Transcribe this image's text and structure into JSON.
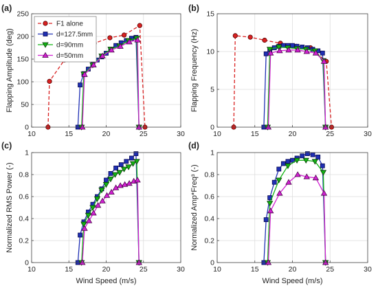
{
  "colors": {
    "f1": "#d92121",
    "d127": "#1f2fb4",
    "d90": "#12b412",
    "d50": "#d21fd2",
    "grid": "#dddddd",
    "axis": "#444444"
  },
  "legend": {
    "entries": [
      "F1 alone",
      "d=127.5mm",
      "d=90mm",
      "d=50mm"
    ]
  },
  "chart_data": [
    {
      "panel": "(a)",
      "type": "line",
      "ylabel": "Flapping Amplitude (deg)",
      "xlabel": "",
      "xlim": [
        10,
        30
      ],
      "ylim": [
        0,
        250
      ],
      "xticks": [
        10,
        15,
        20,
        25,
        30
      ],
      "yticks": [
        0,
        50,
        100,
        150,
        200,
        250
      ],
      "grid": true,
      "legend_location": "top-left",
      "series": [
        {
          "name": "F1 alone",
          "x": [
            12.2,
            12.4,
            14.4,
            16.3,
            18.4,
            20.5,
            22.4,
            24.5,
            25.2
          ],
          "y": [
            0,
            101,
            148,
            168,
            185,
            197,
            203,
            224,
            0
          ]
        },
        {
          "name": "d=127.5mm",
          "x": [
            16.2,
            16.5,
            17.0,
            17.6,
            18.2,
            18.8,
            19.4,
            20.0,
            20.6,
            21.3,
            22.0,
            22.7,
            23.4,
            24.0,
            24.4
          ],
          "y": [
            0,
            93,
            118,
            128,
            138,
            148,
            155,
            163,
            172,
            180,
            186,
            191,
            196,
            198,
            0
          ]
        },
        {
          "name": "d=90mm",
          "x": [
            16.7,
            17.0,
            18.2,
            19.4,
            20.6,
            21.8,
            23.0,
            24.1,
            24.4
          ],
          "y": [
            0,
            117,
            137,
            157,
            172,
            179,
            191,
            196,
            0
          ]
        },
        {
          "name": "d=50mm",
          "x": [
            16.8,
            17.1,
            18.3,
            19.5,
            20.7,
            21.9,
            23.1,
            24.2,
            24.4
          ],
          "y": [
            0,
            116,
            137,
            157,
            170,
            178,
            188,
            192,
            0
          ]
        }
      ]
    },
    {
      "panel": "(b)",
      "type": "line",
      "ylabel": "Flapping Frequency (Hz)",
      "xlabel": "",
      "xlim": [
        10,
        30
      ],
      "ylim": [
        0,
        15
      ],
      "xticks": [
        10,
        15,
        20,
        25,
        30
      ],
      "yticks": [
        0,
        5,
        10,
        15
      ],
      "grid": true,
      "series": [
        {
          "name": "F1 alone",
          "x": [
            12.2,
            12.4,
            14.4,
            16.3,
            18.4,
            20.5,
            22.4,
            24.5,
            25.2
          ],
          "y": [
            0,
            12.1,
            11.9,
            11.5,
            11.1,
            10.7,
            10.5,
            8.7,
            0
          ]
        },
        {
          "name": "d=127.5mm",
          "x": [
            16.2,
            16.5,
            17.0,
            17.6,
            18.2,
            18.8,
            19.4,
            20.0,
            20.6,
            21.3,
            22.0,
            22.7,
            23.4,
            24.0,
            24.4
          ],
          "y": [
            0,
            9.7,
            10.2,
            10.5,
            10.7,
            10.8,
            10.8,
            10.8,
            10.7,
            10.6,
            10.5,
            10.3,
            10.1,
            9.8,
            0
          ]
        },
        {
          "name": "d=90mm",
          "x": [
            16.7,
            17.0,
            18.2,
            19.4,
            20.6,
            21.8,
            23.0,
            24.1,
            24.4
          ],
          "y": [
            0,
            10.3,
            10.6,
            10.5,
            10.4,
            10.3,
            10.1,
            8.8,
            0
          ]
        },
        {
          "name": "d=50mm",
          "x": [
            16.8,
            17.1,
            18.3,
            19.5,
            20.7,
            21.9,
            23.1,
            24.2,
            24.4
          ],
          "y": [
            0,
            9.8,
            10.1,
            10.2,
            10.2,
            10.0,
            9.8,
            8.7,
            0
          ]
        }
      ]
    },
    {
      "panel": "(c)",
      "type": "line",
      "ylabel": "Normalized RMS Power (-)",
      "xlabel": "Wind Speed (m/s)",
      "xlim": [
        10,
        30
      ],
      "ylim": [
        0,
        1
      ],
      "xticks": [
        10,
        15,
        20,
        25,
        30
      ],
      "yticks": [
        0,
        0.2,
        0.4,
        0.6,
        0.8,
        1
      ],
      "grid": true,
      "series": [
        {
          "name": "d=127.5mm",
          "x": [
            16.2,
            16.5,
            17.0,
            17.6,
            18.2,
            18.8,
            19.4,
            20.0,
            20.6,
            21.3,
            22.0,
            22.7,
            23.4,
            24.0,
            24.4
          ],
          "y": [
            0,
            0.25,
            0.37,
            0.46,
            0.53,
            0.6,
            0.67,
            0.75,
            0.81,
            0.86,
            0.89,
            0.92,
            0.95,
            0.99,
            0
          ]
        },
        {
          "name": "d=90mm",
          "x": [
            16.7,
            17.0,
            17.6,
            18.2,
            18.8,
            19.4,
            20.0,
            20.6,
            21.2,
            21.8,
            22.4,
            23.0,
            23.6,
            24.1,
            24.4
          ],
          "y": [
            0,
            0.35,
            0.43,
            0.5,
            0.58,
            0.66,
            0.71,
            0.76,
            0.8,
            0.82,
            0.85,
            0.87,
            0.9,
            0.92,
            0
          ]
        },
        {
          "name": "d=50mm",
          "x": [
            16.8,
            17.1,
            17.7,
            18.3,
            18.9,
            19.5,
            20.1,
            20.7,
            21.3,
            21.9,
            22.5,
            23.1,
            23.7,
            24.2,
            24.4
          ],
          "y": [
            0,
            0.31,
            0.38,
            0.45,
            0.52,
            0.56,
            0.61,
            0.64,
            0.68,
            0.7,
            0.71,
            0.72,
            0.74,
            0.75,
            0
          ]
        }
      ]
    },
    {
      "panel": "(d)",
      "type": "line",
      "ylabel": "Normalized Amp*Freq³ (-)",
      "xlabel": "Wind Speed (m/s)",
      "xlim": [
        10,
        30
      ],
      "ylim": [
        0,
        1
      ],
      "xticks": [
        10,
        15,
        20,
        25,
        30
      ],
      "yticks": [
        0,
        0.2,
        0.4,
        0.6,
        0.8,
        1
      ],
      "grid": true,
      "series": [
        {
          "name": "d=127.5mm",
          "x": [
            16.2,
            16.5,
            17.0,
            17.6,
            18.2,
            18.8,
            19.4,
            20.0,
            20.6,
            21.3,
            22.0,
            22.7,
            23.4,
            24.0,
            24.4
          ],
          "y": [
            0,
            0.39,
            0.59,
            0.73,
            0.85,
            0.9,
            0.92,
            0.93,
            0.95,
            0.97,
            0.99,
            0.98,
            0.96,
            0.88,
            0
          ]
        },
        {
          "name": "d=90mm",
          "x": [
            16.7,
            17.0,
            18.2,
            19.4,
            20.6,
            21.8,
            23.0,
            24.1,
            24.4
          ],
          "y": [
            0,
            0.54,
            0.75,
            0.88,
            0.93,
            0.93,
            0.92,
            0.82,
            0
          ]
        },
        {
          "name": "d=50mm",
          "x": [
            16.8,
            17.1,
            18.3,
            19.5,
            20.7,
            21.9,
            23.1,
            24.2,
            24.4
          ],
          "y": [
            0,
            0.47,
            0.63,
            0.73,
            0.8,
            0.78,
            0.77,
            0.63,
            0
          ]
        }
      ]
    }
  ]
}
